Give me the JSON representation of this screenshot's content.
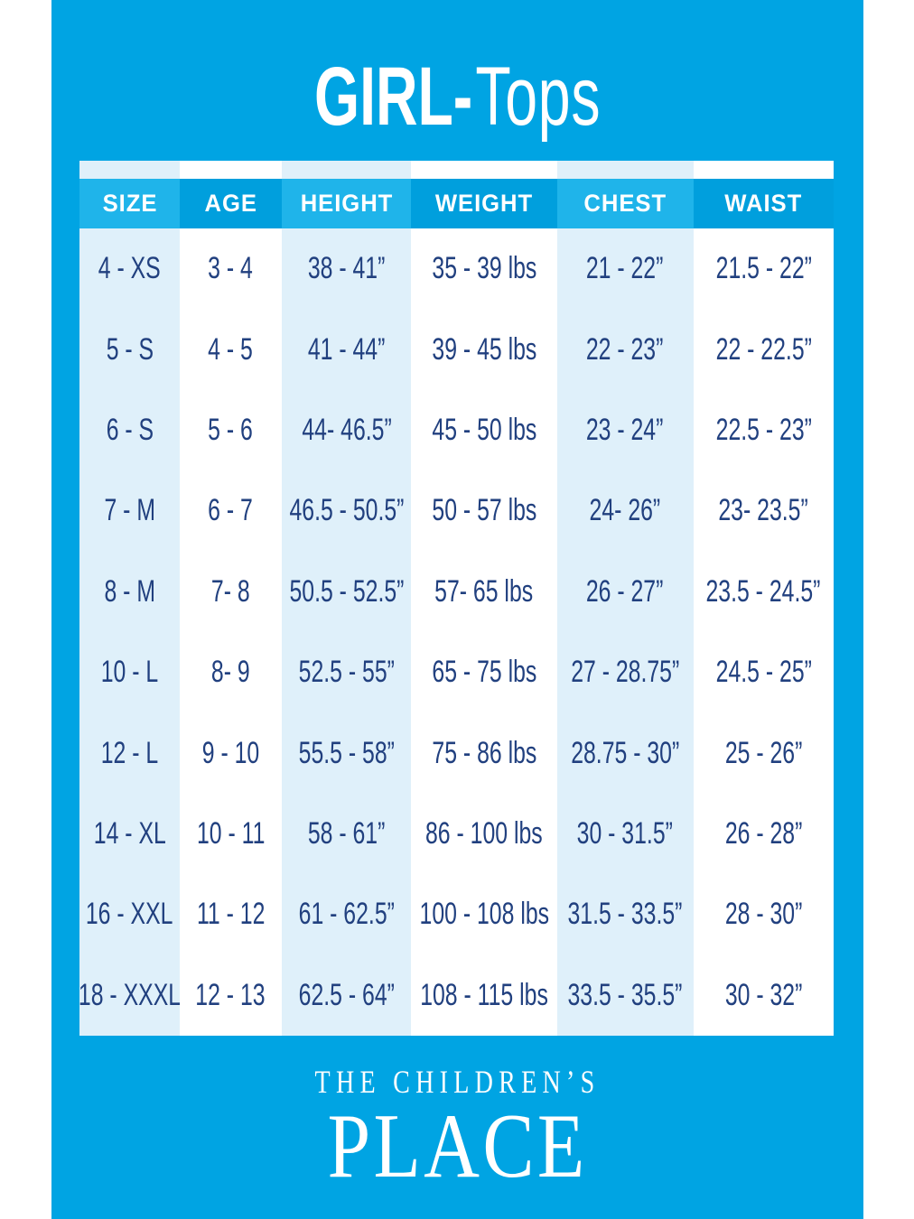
{
  "title": {
    "bold": "GIRL-",
    "regular": "Tops"
  },
  "table": {
    "columns": [
      {
        "label": "SIZE",
        "header_shade": "light",
        "body_shade": "tint"
      },
      {
        "label": "AGE",
        "header_shade": "dark",
        "body_shade": "white"
      },
      {
        "label": "HEIGHT",
        "header_shade": "light",
        "body_shade": "tint"
      },
      {
        "label": "WEIGHT",
        "header_shade": "dark",
        "body_shade": "white"
      },
      {
        "label": "CHEST",
        "header_shade": "light",
        "body_shade": "tint"
      },
      {
        "label": "WAIST",
        "header_shade": "dark",
        "body_shade": "white"
      }
    ],
    "rows": [
      [
        "4 - XS",
        "3 - 4",
        "38 - 41”",
        "35 - 39 lbs",
        "21 - 22”",
        "21.5 - 22”"
      ],
      [
        "5 - S",
        "4 - 5",
        "41 - 44”",
        "39 - 45 lbs",
        "22 - 23”",
        "22 - 22.5”"
      ],
      [
        "6 - S",
        "5 - 6",
        "44- 46.5”",
        "45 - 50 lbs",
        "23 - 24”",
        "22.5 - 23”"
      ],
      [
        "7 - M",
        "6 - 7",
        "46.5 - 50.5”",
        "50 - 57 lbs",
        "24- 26”",
        "23- 23.5”"
      ],
      [
        "8 - M",
        "7- 8",
        "50.5 - 52.5”",
        "57- 65 lbs",
        "26 - 27”",
        "23.5 - 24.5”"
      ],
      [
        "10 - L",
        "8- 9",
        "52.5 - 55”",
        "65 - 75 lbs",
        "27 - 28.75”",
        "24.5 - 25”"
      ],
      [
        "12 - L",
        "9 - 10",
        "55.5 - 58”",
        "75 - 86 lbs",
        "28.75 - 30”",
        "25 - 26”"
      ],
      [
        "14 - XL",
        "10 - 11",
        "58 - 61”",
        "86 - 100 lbs",
        "30 - 31.5”",
        "26 - 28”"
      ],
      [
        "16 - XXL",
        "11 - 12",
        "61 - 62.5”",
        "100 - 108 lbs",
        "31.5 - 33.5”",
        "28 - 30”"
      ],
      [
        "18 - XXXL",
        "12 - 13",
        "62.5 - 64”",
        "108 - 115 lbs",
        "33.5 - 35.5”",
        "30 - 32”"
      ]
    ]
  },
  "footer": {
    "brand_line1": "THE CHILDREN’S",
    "brand_line2": "PLACE"
  },
  "colors": {
    "background_blue": "#00a4e3",
    "header_light": "#1fb4ea",
    "header_dark": "#009fdd",
    "column_tint": "#dff0fa",
    "column_white": "#ffffff",
    "text_navy": "#21407f",
    "text_white": "#ffffff"
  }
}
